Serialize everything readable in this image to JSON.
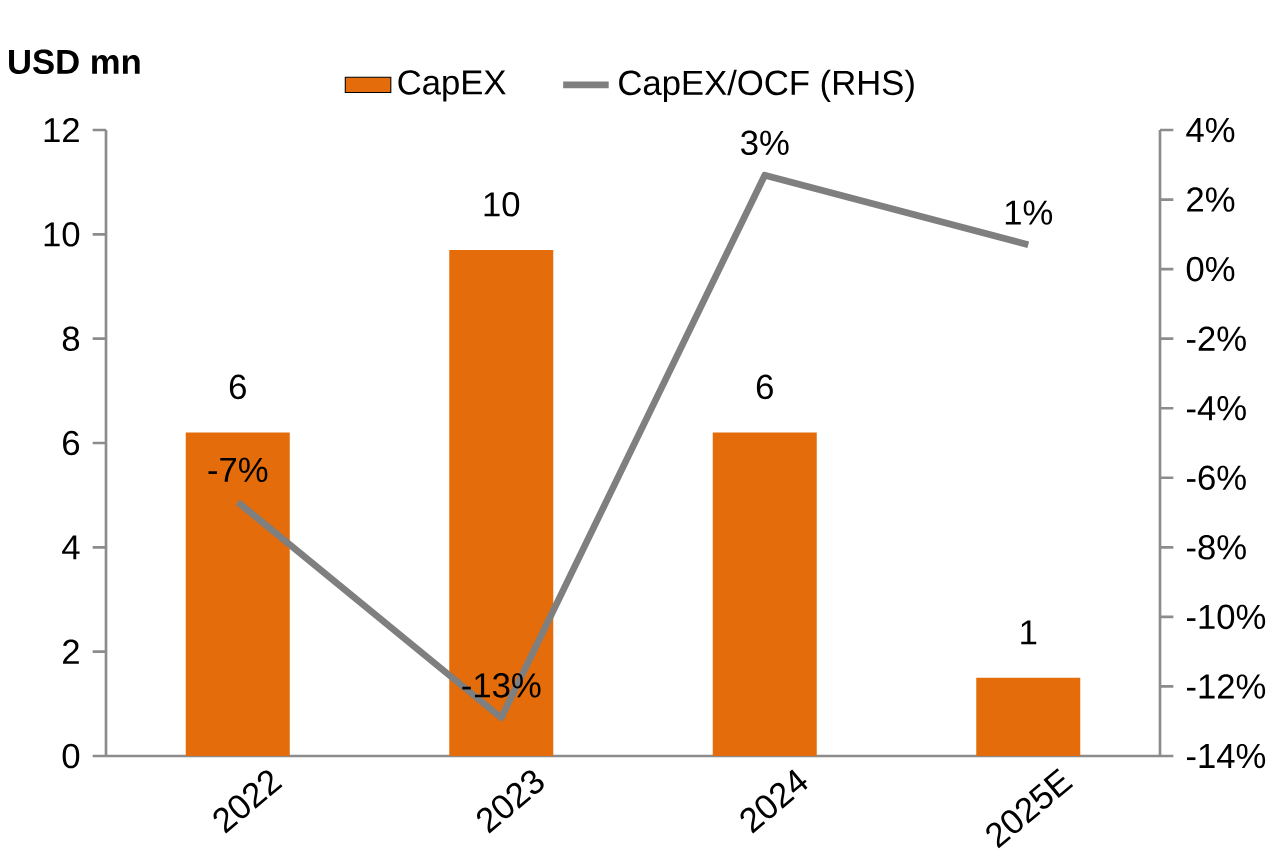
{
  "chart_data": {
    "type": "bar",
    "ylabel": "USD mn",
    "categories": [
      "2022",
      "2023",
      "2024",
      "2025E"
    ],
    "series": [
      {
        "name": "CapEX",
        "color": "#e46c0a",
        "values": [
          6.2,
          9.7,
          6.2,
          1.5
        ],
        "value_labels": [
          "6",
          "10",
          "6",
          "1"
        ]
      },
      {
        "name": "CapEX/OCF (RHS)",
        "type": "line",
        "axis": "y2",
        "color": "#7f7f7f",
        "values": [
          -6.7,
          -12.9,
          2.7,
          0.7
        ],
        "value_labels": [
          "-7%",
          "-13%",
          "3%",
          "1%"
        ]
      }
    ],
    "ylim": [
      0,
      12
    ],
    "yticks": [
      0,
      2,
      4,
      6,
      8,
      10,
      12
    ],
    "y2lim": [
      -14,
      4
    ],
    "y2ticks": [
      {
        "value": -14,
        "label": "-14%"
      },
      {
        "value": -12,
        "label": "-12%"
      },
      {
        "value": -10,
        "label": "-10%"
      },
      {
        "value": -8,
        "label": "-8%"
      },
      {
        "value": -6,
        "label": "-6%"
      },
      {
        "value": -4,
        "label": "-4%"
      },
      {
        "value": -2,
        "label": "-2%"
      },
      {
        "value": 0,
        "label": "0%"
      },
      {
        "value": 2,
        "label": "2%"
      },
      {
        "value": 4,
        "label": "4%"
      }
    ],
    "legend": "top"
  }
}
